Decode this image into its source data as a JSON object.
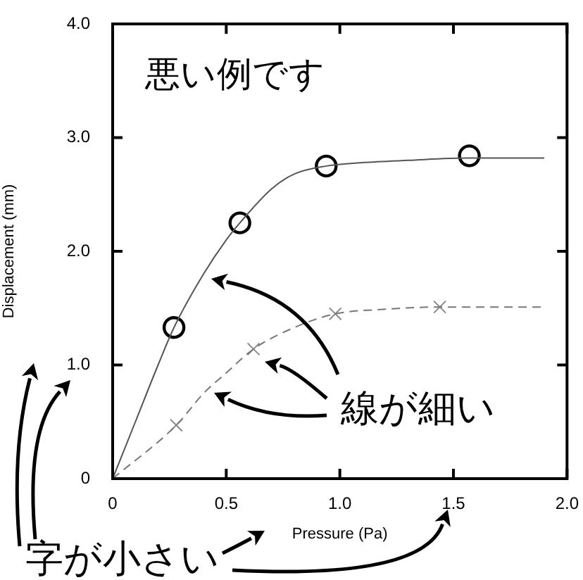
{
  "chart_data": {
    "type": "line",
    "xlabel": "Pressure (Pa)",
    "ylabel": "Displacement (mm)",
    "xlim": [
      0,
      2
    ],
    "ylim": [
      0,
      4
    ],
    "xticks": [
      0,
      0.5,
      {
        "value": 1,
        "label": "1.0"
      },
      1.5,
      {
        "value": 2,
        "label": "2.0"
      }
    ],
    "yticks": [
      0,
      {
        "value": 1,
        "label": "1.0"
      },
      {
        "value": 2,
        "label": "2.0"
      },
      {
        "value": 3,
        "label": "3.0"
      },
      {
        "value": 4,
        "label": "4.0"
      }
    ],
    "grid": false,
    "legend": false,
    "series": [
      {
        "type": "line",
        "color": "#555555",
        "marker": "none",
        "line_style": "solid",
        "x": [
          0,
          0.1,
          0.2,
          0.27,
          0.4,
          0.5,
          0.56,
          0.7,
          0.8,
          0.94,
          1.1,
          1.3,
          1.56,
          1.9
        ],
        "values": [
          0,
          0.5,
          1.0,
          1.33,
          1.8,
          2.1,
          2.25,
          2.55,
          2.68,
          2.75,
          2.78,
          2.8,
          2.82,
          2.82
        ]
      },
      {
        "type": "scatter",
        "color": "#000000",
        "marker": "circle",
        "x": [
          0.27,
          0.56,
          0.94,
          1.57
        ],
        "values": [
          1.33,
          2.25,
          2.75,
          2.84
        ]
      },
      {
        "type": "line",
        "color": "#777777",
        "marker": "none",
        "line_style": "dashed",
        "x": [
          0,
          0.28,
          0.4,
          0.5,
          0.62,
          0.8,
          0.98,
          1.2,
          1.44,
          1.9
        ],
        "values": [
          0,
          0.47,
          0.75,
          0.93,
          1.14,
          1.33,
          1.45,
          1.49,
          1.51,
          1.51
        ]
      },
      {
        "type": "scatter",
        "color": "#888888",
        "marker": "cross",
        "x": [
          0.28,
          0.62,
          0.98,
          1.44
        ],
        "values": [
          0.47,
          1.14,
          1.45,
          1.51
        ]
      }
    ],
    "annotations": [
      "悪い例です",
      "線が細い",
      "字が小さい"
    ]
  }
}
